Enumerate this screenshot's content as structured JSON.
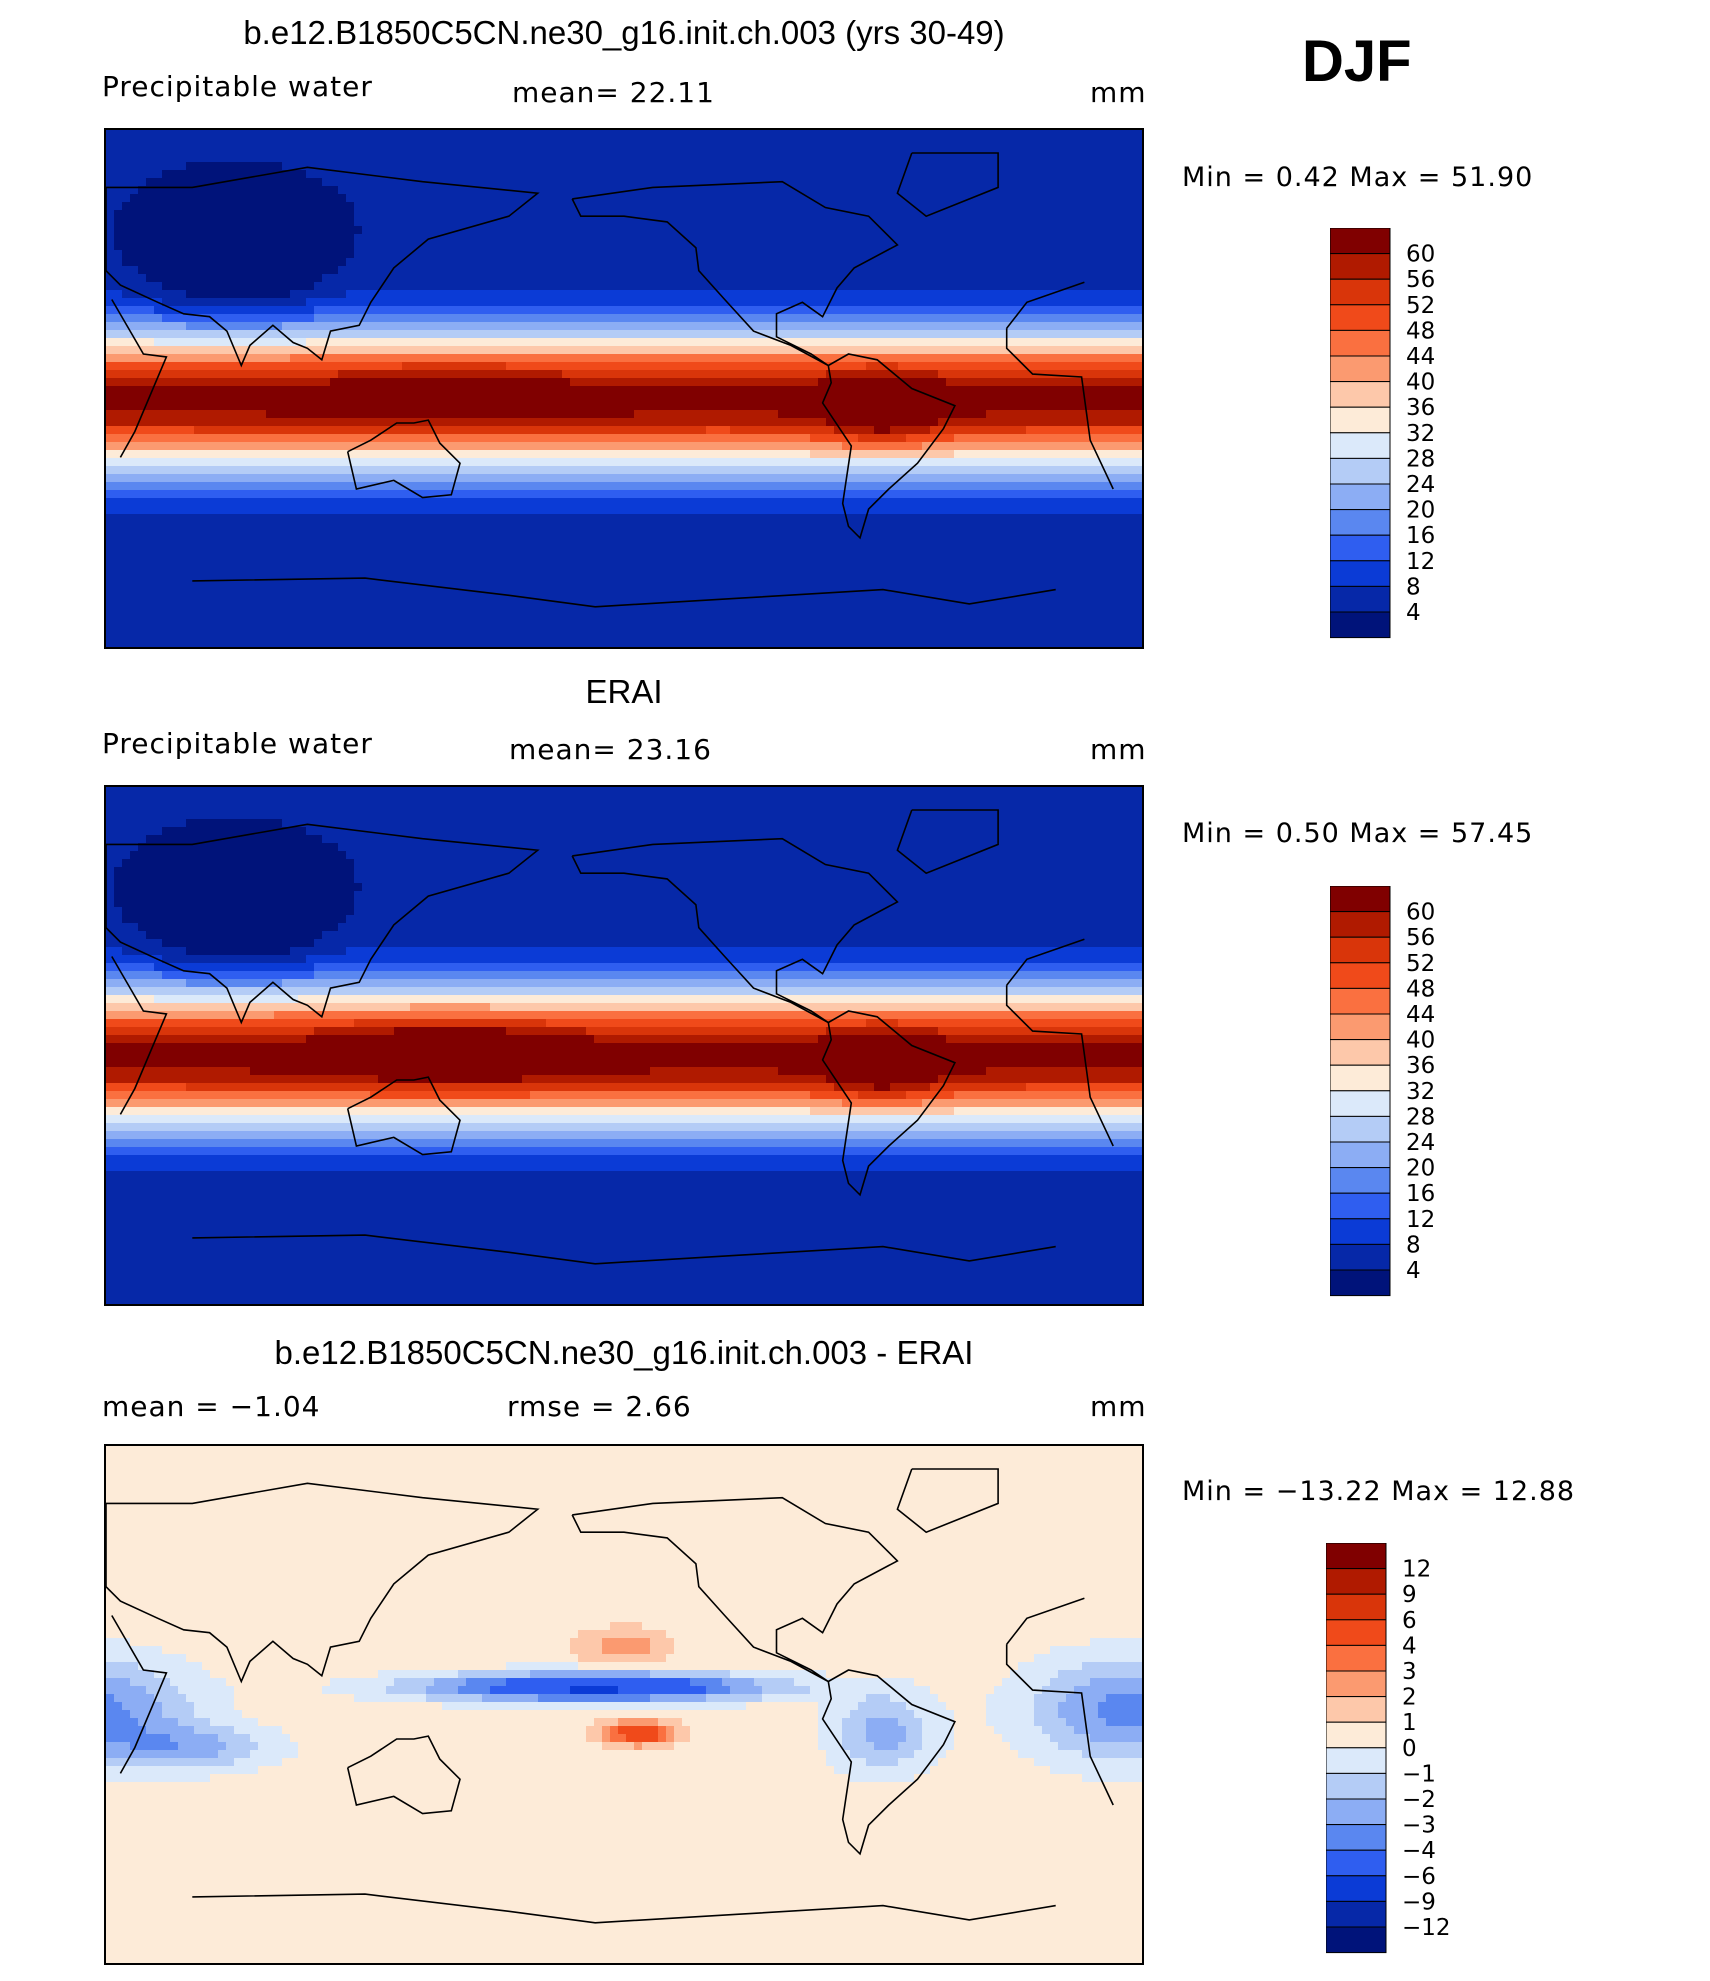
{
  "season": "DJF",
  "panels": [
    {
      "id": "model",
      "title": "b.e12.B1850C5CN.ne30_g16.init.ch.003 (yrs 30-49)",
      "left_label": "Precipitable  water",
      "center_label": "mean=   22.11",
      "units": "mm",
      "stats": "Min  =     0.42  Max  =    51.90",
      "colorbar": {
        "levels": [
          "60",
          "56",
          "52",
          "48",
          "44",
          "40",
          "36",
          "32",
          "28",
          "24",
          "20",
          "16",
          "12",
          "8",
          "4"
        ],
        "colors": [
          "#800000",
          "#b01a00",
          "#d9350a",
          "#f04a1a",
          "#fa7040",
          "#fb9a70",
          "#fdc8aa",
          "#fdebd8",
          "#dbe9fa",
          "#b4ccf6",
          "#8cadf4",
          "#5a87f0",
          "#2f5ef0",
          "#0b3bd6",
          "#0628a8",
          "#00137a"
        ]
      }
    },
    {
      "id": "obs",
      "title": "ERAI",
      "left_label": "Precipitable  water",
      "center_label": "mean=   23.16",
      "units": "mm",
      "stats": "Min  =     0.50  Max  =    57.45",
      "colorbar": {
        "levels": [
          "60",
          "56",
          "52",
          "48",
          "44",
          "40",
          "36",
          "32",
          "28",
          "24",
          "20",
          "16",
          "12",
          "8",
          "4"
        ],
        "colors": [
          "#800000",
          "#b01a00",
          "#d9350a",
          "#f04a1a",
          "#fa7040",
          "#fb9a70",
          "#fdc8aa",
          "#fdebd8",
          "#dbe9fa",
          "#b4ccf6",
          "#8cadf4",
          "#5a87f0",
          "#2f5ef0",
          "#0b3bd6",
          "#0628a8",
          "#00137a"
        ]
      }
    },
    {
      "id": "diff",
      "title": "b.e12.B1850C5CN.ne30_g16.init.ch.003 - ERAI",
      "left_label": "mean  =    −1.04",
      "center_label": "rmse  =     2.66",
      "units": "mm",
      "stats": "Min  = −13.22  Max  =    12.88",
      "colorbar": {
        "levels": [
          "12",
          "9",
          "6",
          "4",
          "3",
          "2",
          "1",
          "0",
          "−1",
          "−2",
          "−3",
          "−4",
          "−6",
          "−9",
          "−12"
        ],
        "colors": [
          "#800000",
          "#b01a00",
          "#d9350a",
          "#f04a1a",
          "#fa7040",
          "#fb9a70",
          "#fdc8aa",
          "#fdebd8",
          "#dbe9fa",
          "#b4ccf6",
          "#8cadf4",
          "#5a87f0",
          "#2f5ef0",
          "#0b3bd6",
          "#0628a8",
          "#00137a"
        ]
      }
    }
  ]
}
